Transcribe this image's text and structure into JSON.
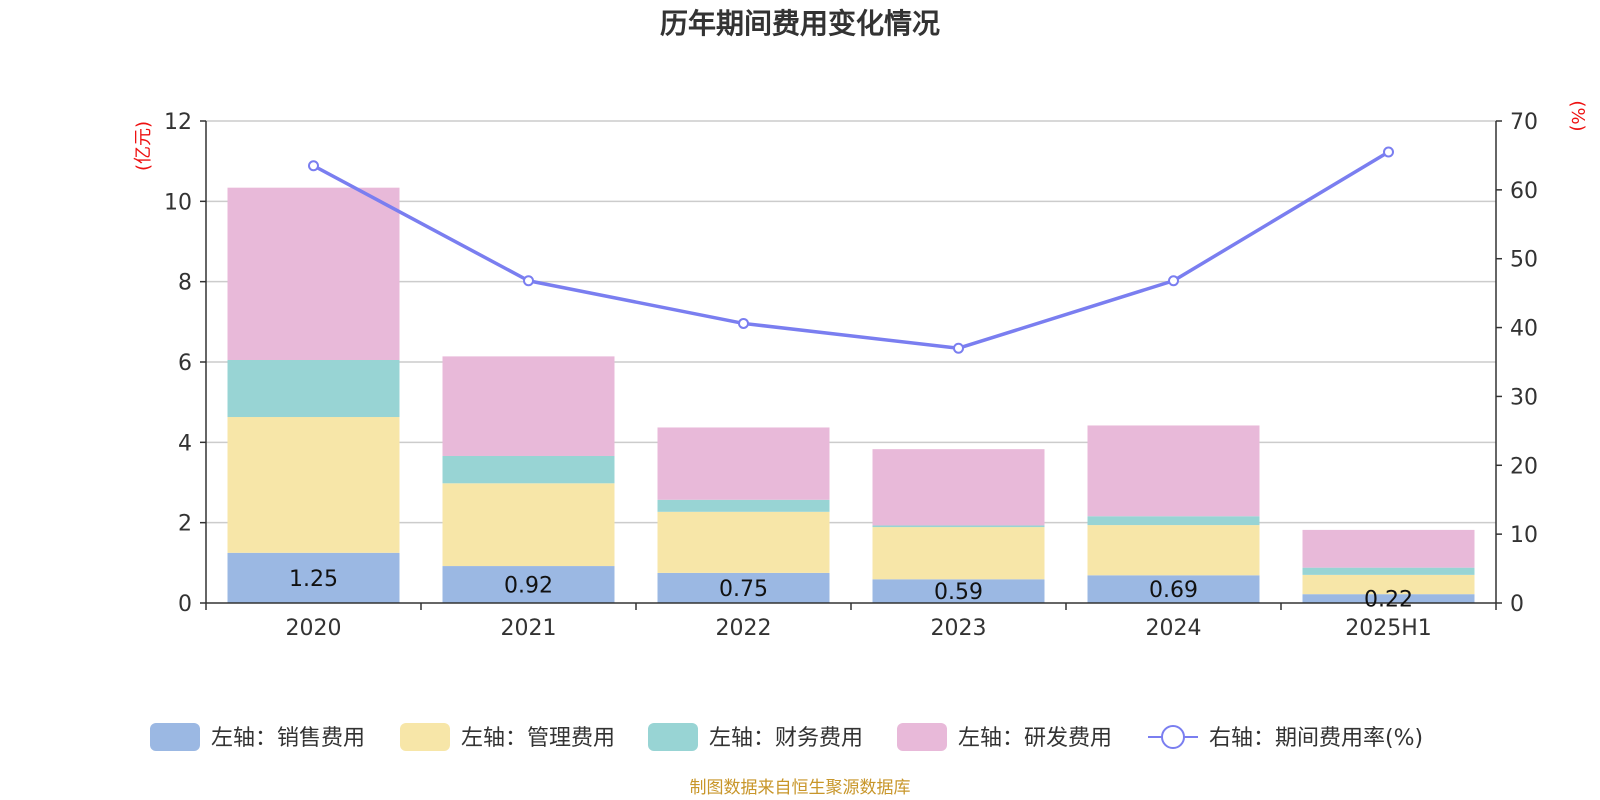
{
  "chart_data": {
    "type": "bar",
    "title": "历年期间费用变化情况",
    "categories": [
      "2020",
      "2021",
      "2022",
      "2023",
      "2024",
      "2025H1"
    ],
    "y_left": {
      "unit": "(亿元)",
      "range": [
        0,
        12
      ],
      "ticks": [
        "0",
        "2",
        "4",
        "6",
        "8",
        "10",
        "12"
      ]
    },
    "y_right": {
      "unit": "(%)",
      "range": [
        0,
        70
      ],
      "ticks": [
        "0",
        "10",
        "20",
        "30",
        "40",
        "50",
        "60",
        "70"
      ]
    },
    "series": [
      {
        "name": "左轴：销售费用",
        "kind": "bar",
        "axis": "left",
        "color": "#9bb8e3",
        "values": [
          1.25,
          0.92,
          0.75,
          0.59,
          0.69,
          0.22
        ],
        "labels": [
          "1.25",
          "0.92",
          "0.75",
          "0.59",
          "0.69",
          "0.22"
        ]
      },
      {
        "name": "左轴：管理费用",
        "kind": "bar",
        "axis": "left",
        "color": "#f7e6a8",
        "values": [
          3.38,
          2.06,
          1.52,
          1.3,
          1.25,
          0.48
        ]
      },
      {
        "name": "左轴：财务费用",
        "kind": "bar",
        "axis": "left",
        "color": "#98d4d4",
        "values": [
          1.42,
          0.68,
          0.3,
          0.04,
          0.22,
          0.18
        ]
      },
      {
        "name": "左轴：研发费用",
        "kind": "bar",
        "axis": "left",
        "color": "#e8b9d9",
        "values": [
          4.29,
          2.48,
          1.8,
          1.9,
          2.26,
          0.94
        ]
      },
      {
        "name": "右轴：期间费用率(%)",
        "kind": "line",
        "axis": "right",
        "color": "#7a7ef0",
        "values": [
          63.5,
          46.8,
          40.6,
          37.0,
          46.8,
          65.5
        ]
      }
    ],
    "grid": true,
    "legend_position": "bottom",
    "source": "制图数据来自恒生聚源数据库"
  }
}
